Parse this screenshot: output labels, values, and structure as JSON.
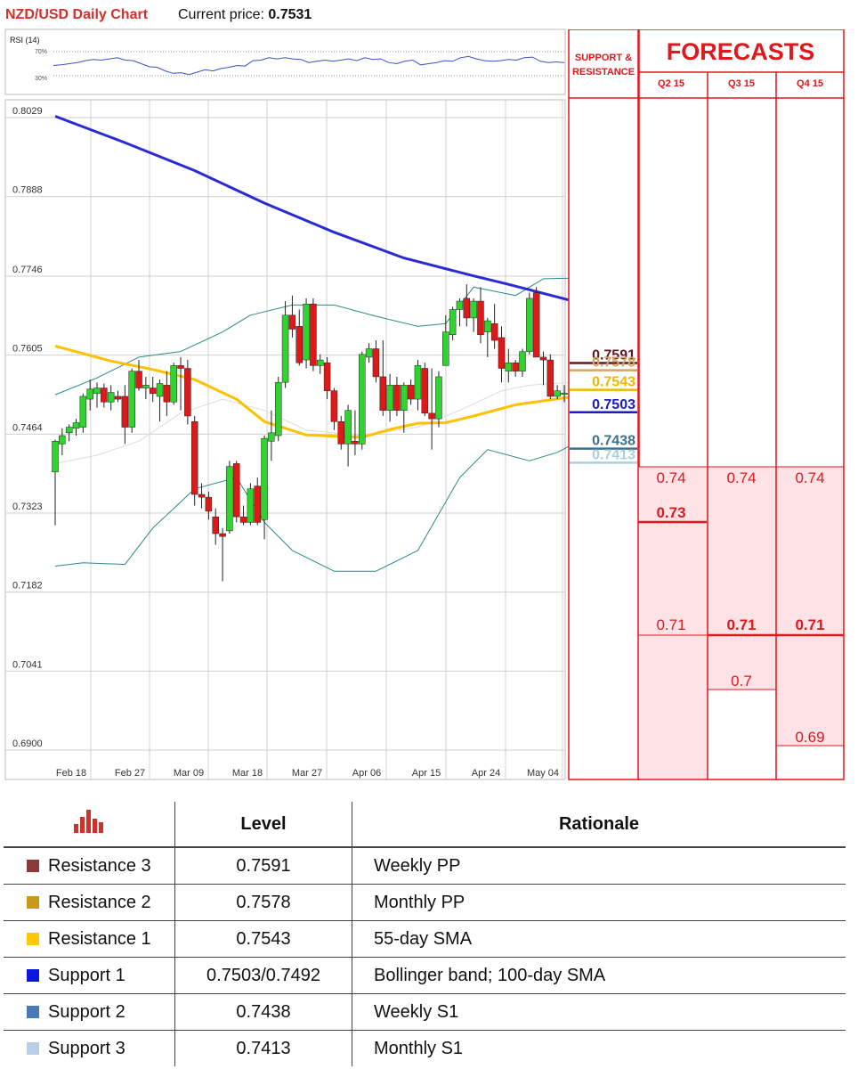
{
  "header": {
    "title": "NZD/USD Daily Chart",
    "price_label": "Current price: ",
    "price_value": "0.7531"
  },
  "rsi": {
    "label": "RSI (14)",
    "upper_label": "70%",
    "lower_label": "30%",
    "values": [
      47,
      48,
      50,
      52,
      55,
      57,
      56,
      58,
      60,
      56,
      55,
      50,
      45,
      44,
      38,
      34,
      35,
      32,
      36,
      40,
      38,
      42,
      44,
      47,
      46,
      55,
      56,
      60,
      58,
      60,
      58,
      57,
      52,
      54,
      56,
      54,
      56,
      58,
      55,
      60,
      57,
      58,
      52,
      50,
      54,
      56,
      48,
      50,
      52,
      55,
      54,
      60,
      62,
      58,
      55,
      54,
      55,
      57,
      56,
      60,
      61,
      54,
      52,
      53,
      52
    ]
  },
  "chart_data": {
    "type": "candlestick",
    "title": "NZD/USD Daily Chart",
    "ylim": [
      0.69,
      0.8029
    ],
    "y_ticks": [
      "0.8029",
      "0.7888",
      "0.7746",
      "0.7605",
      "0.7464",
      "0.7323",
      "0.7182",
      "0.7041",
      "0.6900"
    ],
    "x_labels": [
      "Feb 18",
      "Feb 27",
      "Mar 09",
      "Mar 18",
      "Mar 27",
      "Apr 06",
      "Apr 15",
      "Apr 24",
      "May 04"
    ],
    "candles": [
      [
        0.739,
        0.7448,
        0.7295,
        0.7445
      ],
      [
        0.744,
        0.7468,
        0.742,
        0.7455
      ],
      [
        0.746,
        0.7475,
        0.7445,
        0.747
      ],
      [
        0.7468,
        0.7485,
        0.7455,
        0.7478
      ],
      [
        0.747,
        0.753,
        0.746,
        0.7525
      ],
      [
        0.752,
        0.7555,
        0.75,
        0.7538
      ],
      [
        0.753,
        0.755,
        0.7505,
        0.754
      ],
      [
        0.754,
        0.7548,
        0.7505,
        0.7515
      ],
      [
        0.7515,
        0.7545,
        0.75,
        0.7532
      ],
      [
        0.7525,
        0.7535,
        0.7515,
        0.752
      ],
      [
        0.7525,
        0.7545,
        0.744,
        0.747
      ],
      [
        0.747,
        0.7575,
        0.746,
        0.757
      ],
      [
        0.757,
        0.759,
        0.7535,
        0.754
      ],
      [
        0.754,
        0.756,
        0.752,
        0.7545
      ],
      [
        0.754,
        0.756,
        0.7515,
        0.753
      ],
      [
        0.7525,
        0.7555,
        0.748,
        0.7548
      ],
      [
        0.7545,
        0.757,
        0.749,
        0.7515
      ],
      [
        0.7515,
        0.7585,
        0.751,
        0.758
      ],
      [
        0.758,
        0.7595,
        0.75,
        0.7575
      ],
      [
        0.7575,
        0.759,
        0.7475,
        0.749
      ],
      [
        0.748,
        0.749,
        0.733,
        0.735
      ],
      [
        0.735,
        0.737,
        0.7325,
        0.7345
      ],
      [
        0.7345,
        0.7355,
        0.7305,
        0.732
      ],
      [
        0.731,
        0.7325,
        0.726,
        0.728
      ],
      [
        0.728,
        0.729,
        0.7195,
        0.7275
      ],
      [
        0.7285,
        0.741,
        0.728,
        0.74
      ],
      [
        0.7405,
        0.741,
        0.73,
        0.731
      ],
      [
        0.731,
        0.733,
        0.7295,
        0.73
      ],
      [
        0.73,
        0.737,
        0.7295,
        0.736
      ],
      [
        0.7365,
        0.738,
        0.7295,
        0.73
      ],
      [
        0.7305,
        0.7455,
        0.727,
        0.745
      ],
      [
        0.7445,
        0.75,
        0.741,
        0.746
      ],
      [
        0.7455,
        0.756,
        0.7445,
        0.755
      ],
      [
        0.755,
        0.7695,
        0.754,
        0.767
      ],
      [
        0.767,
        0.7705,
        0.763,
        0.7645
      ],
      [
        0.765,
        0.768,
        0.758,
        0.7585
      ],
      [
        0.759,
        0.77,
        0.7575,
        0.769
      ],
      [
        0.769,
        0.77,
        0.757,
        0.758
      ],
      [
        0.758,
        0.76,
        0.7565,
        0.759
      ],
      [
        0.7585,
        0.7595,
        0.752,
        0.7535
      ],
      [
        0.7535,
        0.754,
        0.7465,
        0.748
      ],
      [
        0.748,
        0.749,
        0.743,
        0.744
      ],
      [
        0.744,
        0.751,
        0.74,
        0.75
      ],
      [
        0.7445,
        0.75,
        0.742,
        0.744
      ],
      [
        0.744,
        0.7605,
        0.743,
        0.76
      ],
      [
        0.7595,
        0.762,
        0.7585,
        0.761
      ],
      [
        0.761,
        0.7625,
        0.755,
        0.756
      ],
      [
        0.756,
        0.7625,
        0.749,
        0.75
      ],
      [
        0.75,
        0.7565,
        0.748,
        0.7545
      ],
      [
        0.7545,
        0.756,
        0.749,
        0.75
      ],
      [
        0.75,
        0.755,
        0.746,
        0.7545
      ],
      [
        0.7545,
        0.7555,
        0.751,
        0.752
      ],
      [
        0.752,
        0.759,
        0.75,
        0.758
      ],
      [
        0.7575,
        0.7585,
        0.749,
        0.7495
      ],
      [
        0.7495,
        0.7575,
        0.743,
        0.7485
      ],
      [
        0.7485,
        0.757,
        0.747,
        0.756
      ],
      [
        0.758,
        0.767,
        0.758,
        0.764
      ],
      [
        0.7635,
        0.7685,
        0.7625,
        0.768
      ],
      [
        0.768,
        0.77,
        0.765,
        0.7695
      ],
      [
        0.77,
        0.7725,
        0.765,
        0.7665
      ],
      [
        0.7665,
        0.77,
        0.764,
        0.7695
      ],
      [
        0.7695,
        0.772,
        0.762,
        0.7635
      ],
      [
        0.764,
        0.7665,
        0.7595,
        0.766
      ],
      [
        0.7655,
        0.769,
        0.761,
        0.7625
      ],
      [
        0.763,
        0.765,
        0.755,
        0.7575
      ],
      [
        0.757,
        0.761,
        0.755,
        0.7585
      ],
      [
        0.7585,
        0.759,
        0.756,
        0.757
      ],
      [
        0.757,
        0.761,
        0.756,
        0.7605
      ],
      [
        0.7605,
        0.771,
        0.76,
        0.77
      ],
      [
        0.771,
        0.772,
        0.76,
        0.7595
      ],
      [
        0.7595,
        0.7605,
        0.7545,
        0.759
      ],
      [
        0.759,
        0.76,
        0.752,
        0.7525
      ],
      [
        0.7525,
        0.7545,
        0.752,
        0.7535
      ],
      [
        0.753,
        0.7545,
        0.7515,
        0.7531
      ]
    ],
    "sma_200": [
      [
        0,
        0.8025
      ],
      [
        10,
        0.7978
      ],
      [
        20,
        0.7928
      ],
      [
        30,
        0.787
      ],
      [
        40,
        0.7818
      ],
      [
        50,
        0.7772
      ],
      [
        60,
        0.774
      ],
      [
        65,
        0.7725
      ],
      [
        74,
        0.7696
      ]
    ],
    "sma_55": [
      [
        0,
        0.7615
      ],
      [
        8,
        0.7588
      ],
      [
        14,
        0.7573
      ],
      [
        20,
        0.7555
      ],
      [
        26,
        0.752
      ],
      [
        30,
        0.748
      ],
      [
        36,
        0.7456
      ],
      [
        44,
        0.7452
      ],
      [
        48,
        0.7466
      ],
      [
        52,
        0.7477
      ],
      [
        56,
        0.7478
      ],
      [
        60,
        0.749
      ],
      [
        66,
        0.751
      ],
      [
        74,
        0.7524
      ]
    ],
    "sma_100": [
      [
        0,
        0.7405
      ],
      [
        6,
        0.742
      ],
      [
        12,
        0.7445
      ],
      [
        18,
        0.7495
      ],
      [
        24,
        0.752
      ],
      [
        30,
        0.75
      ],
      [
        36,
        0.7465
      ],
      [
        44,
        0.7455
      ],
      [
        52,
        0.747
      ],
      [
        58,
        0.75
      ],
      [
        64,
        0.7535
      ],
      [
        68,
        0.7545
      ],
      [
        74,
        0.755
      ]
    ],
    "bb_upper": [
      [
        0,
        0.7528
      ],
      [
        6,
        0.7558
      ],
      [
        12,
        0.7595
      ],
      [
        18,
        0.7605
      ],
      [
        24,
        0.764
      ],
      [
        28,
        0.767
      ],
      [
        34,
        0.7688
      ],
      [
        40,
        0.7688
      ],
      [
        46,
        0.7668
      ],
      [
        52,
        0.765
      ],
      [
        56,
        0.7655
      ],
      [
        60,
        0.772
      ],
      [
        66,
        0.7705
      ],
      [
        70,
        0.7735
      ],
      [
        74,
        0.7736
      ]
    ],
    "bb_lower": [
      [
        0,
        0.7222
      ],
      [
        4,
        0.7228
      ],
      [
        10,
        0.7225
      ],
      [
        14,
        0.729
      ],
      [
        20,
        0.736
      ],
      [
        26,
        0.738
      ],
      [
        30,
        0.73
      ],
      [
        34,
        0.725
      ],
      [
        40,
        0.7213
      ],
      [
        46,
        0.7213
      ],
      [
        52,
        0.725
      ],
      [
        58,
        0.738
      ],
      [
        62,
        0.743
      ],
      [
        68,
        0.741
      ],
      [
        72,
        0.7425
      ],
      [
        74,
        0.7438
      ]
    ]
  },
  "support_resistance": {
    "header_line1": "SUPPORT &",
    "header_line2": "RESISTANCE",
    "levels": [
      {
        "label": "0.7591",
        "value": 0.7591,
        "color": "#5e1820"
      },
      {
        "label": "0.7578",
        "value": 0.7578,
        "color": "#d4a463"
      },
      {
        "label": "0.7543",
        "value": 0.7543,
        "color": "#f0b600"
      },
      {
        "label": "0.7503",
        "value": 0.7503,
        "color": "#1a1ac8"
      },
      {
        "label": "0.7438",
        "value": 0.7438,
        "color": "#3a7090"
      },
      {
        "label": "0.7413",
        "value": 0.7413,
        "color": "#a8d3d8"
      }
    ]
  },
  "forecasts": {
    "title": "FORECASTS",
    "columns": [
      {
        "label": "Q2 15",
        "values": [
          "0.74",
          "0.73",
          "0.71"
        ],
        "bold": [
          false,
          true,
          false
        ]
      },
      {
        "label": "Q3 15",
        "values": [
          "0.74",
          "0.71",
          "0.7"
        ],
        "bold": [
          false,
          true,
          false
        ]
      },
      {
        "label": "Q4 15",
        "values": [
          "0.74",
          "0.71",
          "0.69"
        ],
        "bold": [
          false,
          true,
          false
        ]
      }
    ]
  },
  "levels_table": {
    "col_level": "Level",
    "col_rationale": "Rationale",
    "rows": [
      {
        "name": "Resistance 3",
        "level": "0.7591",
        "rationale": "Weekly PP",
        "color": "#8b3a3a"
      },
      {
        "name": "Resistance 2",
        "level": "0.7578",
        "rationale": "Monthly PP",
        "color": "#c89a1a"
      },
      {
        "name": "Resistance 1",
        "level": "0.7543",
        "rationale": "55-day SMA",
        "color": "#ffc800"
      },
      {
        "name": "Support 1",
        "level": "0.7503/0.7492",
        "rationale": "Bollinger band; 100-day SMA",
        "color": "#0a17e0"
      },
      {
        "name": "Support 2",
        "level": "0.7438",
        "rationale": "Weekly S1",
        "color": "#4a7ab5"
      },
      {
        "name": "Support 3",
        "level": "0.7413",
        "rationale": "Monthly S1",
        "color": "#b8cfe6"
      }
    ]
  }
}
